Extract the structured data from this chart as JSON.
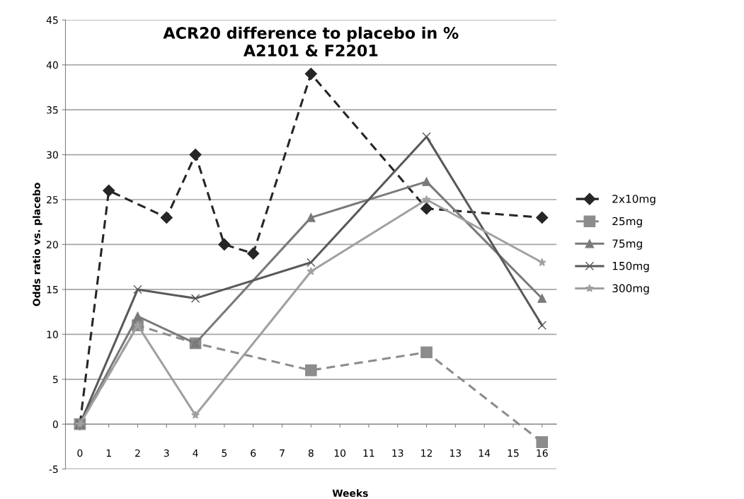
{
  "chart_data": {
    "type": "line",
    "title": "ACR20 difference to placebo in %\nA2101 & F2201",
    "xlabel": "Weeks",
    "ylabel": "Odds ratio vs. placebo",
    "categories": [
      "0",
      "1",
      "2",
      "3",
      "4",
      "5",
      "6",
      "7",
      "8",
      "10",
      "11",
      "13",
      "12",
      "13",
      "14",
      "15",
      "16"
    ],
    "series": [
      {
        "name": "2x10mg",
        "color": "#262626",
        "marker": "diamond",
        "line_style": "dashed",
        "values": [
          0,
          26,
          null,
          23,
          30,
          20,
          19,
          null,
          39,
          null,
          null,
          null,
          24,
          null,
          null,
          null,
          23
        ]
      },
      {
        "name": "25mg",
        "color": "#8c8c8c",
        "marker": "square",
        "line_style": "dashed",
        "values": [
          0,
          null,
          11,
          null,
          9,
          null,
          null,
          null,
          6,
          null,
          null,
          null,
          8,
          null,
          null,
          null,
          -2
        ]
      },
      {
        "name": "75mg",
        "color": "#7a7a7a",
        "marker": "triangle",
        "line_style": "solid",
        "values": [
          0,
          null,
          12,
          null,
          9,
          null,
          null,
          null,
          23,
          null,
          null,
          null,
          27,
          null,
          null,
          null,
          14
        ]
      },
      {
        "name": "150mg",
        "color": "#595959",
        "marker": "cross",
        "line_style": "solid",
        "values": [
          0,
          null,
          15,
          null,
          14,
          null,
          null,
          null,
          18,
          null,
          null,
          null,
          32,
          null,
          null,
          null,
          11
        ]
      },
      {
        "name": "300mg",
        "color": "#a0a0a0",
        "marker": "star",
        "line_style": "solid",
        "values": [
          0,
          null,
          11,
          null,
          1,
          null,
          null,
          null,
          17,
          null,
          null,
          null,
          25,
          null,
          null,
          null,
          18
        ]
      }
    ],
    "ylim": [
      -5,
      45
    ],
    "yticks": [
      -5,
      0,
      5,
      10,
      15,
      20,
      25,
      30,
      35,
      40,
      45
    ],
    "grid": "y",
    "legend": "right"
  }
}
